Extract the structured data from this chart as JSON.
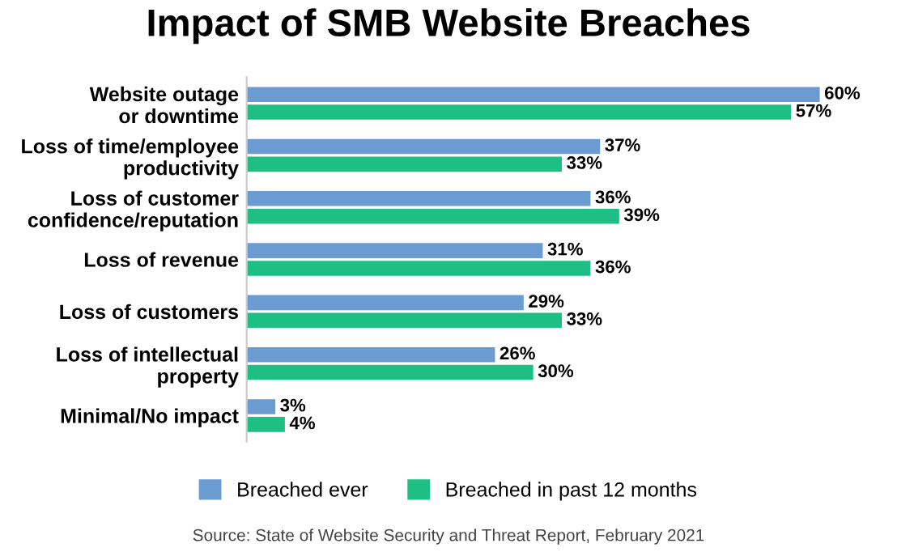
{
  "chart_data": {
    "type": "bar",
    "orientation": "horizontal",
    "title": "Impact of SMB Website Breaches",
    "categories": [
      "Website outage\nor downtime",
      "Loss of time/employee\nproductivity",
      "Loss of customer\nconfidence/reputation",
      "Loss of revenue",
      "Loss of customers",
      "Loss of intellectual\nproperty",
      "Minimal/No impact"
    ],
    "series": [
      {
        "name": "Breached ever",
        "color": "#6a9bd1",
        "values": [
          60,
          37,
          36,
          31,
          29,
          26,
          3
        ],
        "value_labels": [
          "60%",
          "37%",
          "36%",
          "31%",
          "29%",
          "26%",
          "3%"
        ]
      },
      {
        "name": "Breached in past 12 months",
        "color": "#1dbf85",
        "values": [
          57,
          33,
          39,
          36,
          33,
          30,
          4
        ],
        "value_labels": [
          "57%",
          "33%",
          "39%",
          "36%",
          "33%",
          "30%",
          "4%"
        ]
      }
    ],
    "legend": "bottom",
    "grid": false,
    "annotations": [
      "Source: State of Website Security and Threat Report, February 2021"
    ]
  }
}
